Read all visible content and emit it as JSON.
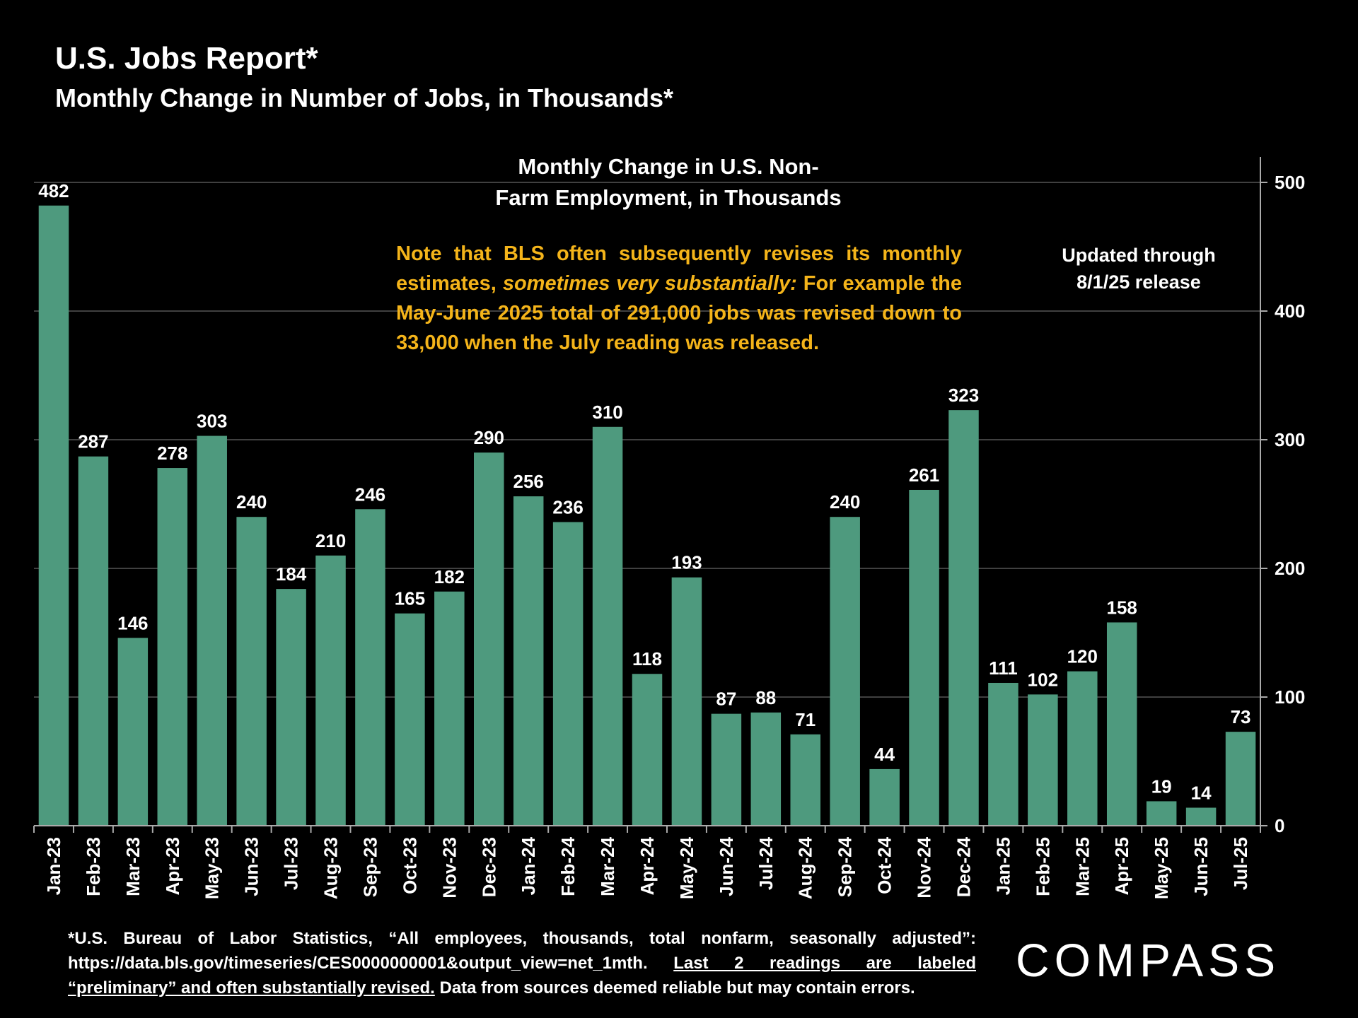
{
  "header": {
    "title": "U.S. Jobs Report*",
    "subtitle": "Monthly Change in Number of Jobs, in Thousands*"
  },
  "chart_title_line1": "Monthly Change in U.S. Non-",
  "chart_title_line2": "Farm Employment, in Thousands",
  "note": {
    "part1": "Note that BLS often subsequently revises its monthly estimates,",
    "italic": "sometimes very substantially:",
    "part2": " For example the May-June 2025 total of 291,000 jobs was revised down to 33,000 when the July reading was released."
  },
  "updated_line1": "Updated through",
  "updated_line2": "8/1/25 release",
  "footnote": {
    "text1": "*U.S. Bureau of Labor Statistics, “All employees, thousands, total nonfarm, seasonally adjusted”: https://data.bls.gov/timeseries/CES0000000001&output_view=net_1mth. ",
    "underlined": "Last 2 readings are labeled “preliminary” and often substantially revised.",
    "text2": " Data from sources deemed reliable but may contain errors."
  },
  "logo": "COMPASS",
  "colors": {
    "bar": "#4E9A7E",
    "note": "#F4B41A",
    "background": "#000000"
  },
  "chart_data": {
    "type": "bar",
    "title": "Monthly Change in U.S. Non-Farm Employment, in Thousands",
    "categories": [
      "Jan-23",
      "Feb-23",
      "Mar-23",
      "Apr-23",
      "May-23",
      "Jun-23",
      "Jul-23",
      "Aug-23",
      "Sep-23",
      "Oct-23",
      "Nov-23",
      "Dec-23",
      "Jan-24",
      "Feb-24",
      "Mar-24",
      "Apr-24",
      "May-24",
      "Jun-24",
      "Jul-24",
      "Aug-24",
      "Sep-24",
      "Oct-24",
      "Nov-24",
      "Dec-24",
      "Jan-25",
      "Feb-25",
      "Mar-25",
      "Apr-25",
      "May-25",
      "Jun-25",
      "Jul-25"
    ],
    "values": [
      482,
      287,
      146,
      278,
      303,
      240,
      184,
      210,
      246,
      165,
      182,
      290,
      256,
      236,
      310,
      118,
      193,
      87,
      88,
      71,
      240,
      44,
      261,
      323,
      111,
      102,
      120,
      158,
      19,
      14,
      73
    ],
    "ylim": [
      0,
      500
    ],
    "yticks": [
      0,
      100,
      200,
      300,
      400,
      500
    ],
    "y_axis_side": "right",
    "grid": true,
    "data_labels": true
  }
}
